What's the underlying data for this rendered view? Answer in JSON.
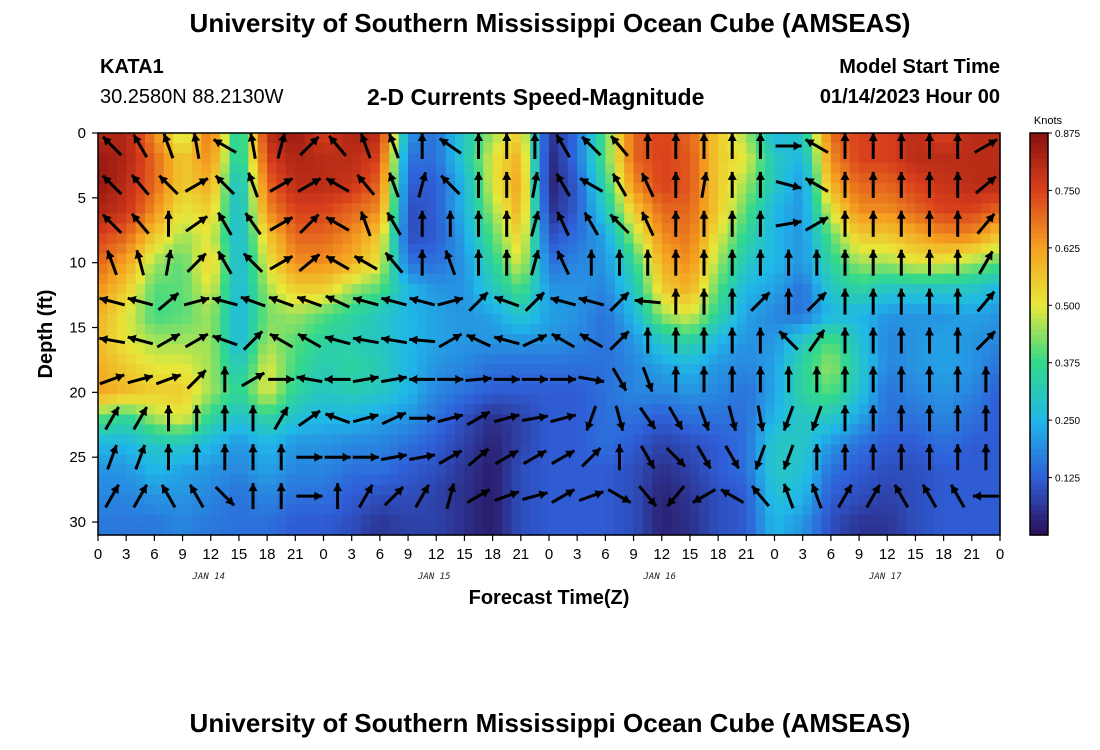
{
  "header": {
    "title": "University of Southern Mississippi Ocean Cube (AMSEAS)",
    "station": "KATA1",
    "coords": "30.2580N  88.2130W",
    "subtitle": "2-D Currents Speed-Magnitude",
    "model_start_label": "Model Start Time",
    "model_start_value": "01/14/2023 Hour 00"
  },
  "footer": {
    "title": "University of Southern Mississippi Ocean Cube (AMSEAS)"
  },
  "chart_data": {
    "type": "heatmap",
    "title": "2-D Currents Speed-Magnitude",
    "xlabel": "Forecast Time(Z)",
    "ylabel": "Depth (ft)",
    "x_tick_labels": [
      "0",
      "3",
      "6",
      "9",
      "12",
      "15",
      "18",
      "21",
      "0",
      "3",
      "6",
      "9",
      "12",
      "15",
      "18",
      "21",
      "0",
      "3",
      "6",
      "9",
      "12",
      "15",
      "18",
      "21",
      "0",
      "3",
      "6",
      "9",
      "12",
      "15",
      "18",
      "21",
      "0"
    ],
    "day_labels": [
      "JAN 14",
      "JAN 15",
      "JAN 16",
      "JAN 17"
    ],
    "x_range_hours": [
      0,
      96
    ],
    "y_ticks": [
      0,
      5,
      10,
      15,
      20,
      25,
      30
    ],
    "ylim": [
      0,
      31
    ],
    "y_inverted": true,
    "colorbar": {
      "unit": "Knots",
      "ticks": [
        "0.125",
        "0.250",
        "0.375",
        "0.500",
        "0.625",
        "0.750",
        "0.875"
      ],
      "range": [
        0,
        0.875
      ],
      "colors": [
        "#2a0f55",
        "#2f5fd8",
        "#20b8e8",
        "#33d98a",
        "#e8e83a",
        "#f5a020",
        "#d9401c",
        "#8a1010"
      ]
    },
    "speed_knots": {
      "hours": [
        0,
        3,
        6,
        9,
        12,
        15,
        18,
        21,
        24,
        27,
        30,
        33,
        36,
        39,
        42,
        45,
        48,
        51,
        54,
        57,
        60,
        63,
        66,
        69,
        72,
        75,
        78,
        81,
        84,
        87,
        90,
        93,
        96
      ],
      "depths_ft": [
        0,
        2,
        4,
        6,
        8,
        10,
        12,
        14,
        16,
        18,
        20,
        22,
        24,
        26,
        28,
        30,
        31
      ],
      "values": [
        [
          0.8,
          0.82,
          0.65,
          0.45,
          0.7,
          0.3,
          0.8,
          0.85,
          0.75,
          0.82,
          0.8,
          0.2,
          0.15,
          0.3,
          0.45,
          0.55,
          0.05,
          0.15,
          0.4,
          0.7,
          0.75,
          0.7,
          0.55,
          0.45,
          0.25,
          0.3,
          0.7,
          0.75,
          0.75,
          0.8,
          0.75,
          0.8,
          0.8
        ],
        [
          0.85,
          0.82,
          0.7,
          0.55,
          0.65,
          0.3,
          0.75,
          0.82,
          0.8,
          0.8,
          0.75,
          0.15,
          0.15,
          0.3,
          0.5,
          0.6,
          0.03,
          0.15,
          0.4,
          0.7,
          0.75,
          0.72,
          0.55,
          0.5,
          0.3,
          0.25,
          0.65,
          0.75,
          0.75,
          0.8,
          0.8,
          0.8,
          0.8
        ],
        [
          0.86,
          0.8,
          0.7,
          0.55,
          0.6,
          0.25,
          0.7,
          0.8,
          0.8,
          0.78,
          0.7,
          0.12,
          0.12,
          0.25,
          0.5,
          0.62,
          0.02,
          0.12,
          0.35,
          0.65,
          0.75,
          0.72,
          0.55,
          0.45,
          0.3,
          0.2,
          0.6,
          0.7,
          0.7,
          0.75,
          0.78,
          0.8,
          0.8
        ],
        [
          0.82,
          0.78,
          0.65,
          0.5,
          0.55,
          0.25,
          0.65,
          0.75,
          0.75,
          0.7,
          0.65,
          0.1,
          0.12,
          0.25,
          0.45,
          0.6,
          0.05,
          0.12,
          0.3,
          0.55,
          0.7,
          0.7,
          0.55,
          0.4,
          0.25,
          0.2,
          0.5,
          0.65,
          0.65,
          0.7,
          0.75,
          0.75,
          0.7
        ],
        [
          0.75,
          0.7,
          0.55,
          0.45,
          0.5,
          0.25,
          0.55,
          0.7,
          0.7,
          0.65,
          0.55,
          0.1,
          0.12,
          0.22,
          0.4,
          0.55,
          0.1,
          0.15,
          0.22,
          0.45,
          0.65,
          0.68,
          0.5,
          0.35,
          0.25,
          0.2,
          0.4,
          0.55,
          0.55,
          0.6,
          0.65,
          0.65,
          0.55
        ],
        [
          0.7,
          0.62,
          0.45,
          0.4,
          0.55,
          0.25,
          0.5,
          0.65,
          0.65,
          0.6,
          0.5,
          0.15,
          0.15,
          0.2,
          0.35,
          0.5,
          0.15,
          0.18,
          0.2,
          0.35,
          0.6,
          0.65,
          0.45,
          0.3,
          0.25,
          0.2,
          0.35,
          0.45,
          0.45,
          0.5,
          0.5,
          0.45,
          0.4
        ],
        [
          0.65,
          0.55,
          0.4,
          0.4,
          0.5,
          0.25,
          0.45,
          0.55,
          0.55,
          0.45,
          0.4,
          0.25,
          0.2,
          0.2,
          0.3,
          0.4,
          0.2,
          0.2,
          0.18,
          0.3,
          0.55,
          0.6,
          0.4,
          0.25,
          0.22,
          0.15,
          0.3,
          0.35,
          0.3,
          0.3,
          0.3,
          0.3,
          0.25
        ],
        [
          0.6,
          0.5,
          0.38,
          0.4,
          0.45,
          0.25,
          0.42,
          0.45,
          0.4,
          0.35,
          0.3,
          0.25,
          0.22,
          0.2,
          0.22,
          0.3,
          0.22,
          0.2,
          0.15,
          0.25,
          0.45,
          0.5,
          0.35,
          0.22,
          0.18,
          0.15,
          0.25,
          0.25,
          0.2,
          0.2,
          0.2,
          0.22,
          0.2
        ],
        [
          0.58,
          0.5,
          0.45,
          0.45,
          0.45,
          0.25,
          0.45,
          0.4,
          0.35,
          0.32,
          0.3,
          0.25,
          0.22,
          0.2,
          0.2,
          0.2,
          0.2,
          0.18,
          0.15,
          0.2,
          0.3,
          0.35,
          0.25,
          0.2,
          0.2,
          0.3,
          0.4,
          0.28,
          0.18,
          0.2,
          0.22,
          0.2,
          0.18
        ],
        [
          0.6,
          0.55,
          0.5,
          0.5,
          0.45,
          0.3,
          0.5,
          0.38,
          0.32,
          0.35,
          0.32,
          0.25,
          0.2,
          0.18,
          0.15,
          0.15,
          0.15,
          0.15,
          0.15,
          0.18,
          0.22,
          0.25,
          0.2,
          0.18,
          0.22,
          0.35,
          0.45,
          0.3,
          0.18,
          0.2,
          0.22,
          0.2,
          0.15
        ],
        [
          0.62,
          0.58,
          0.55,
          0.55,
          0.45,
          0.35,
          0.5,
          0.35,
          0.3,
          0.32,
          0.3,
          0.25,
          0.18,
          0.15,
          0.12,
          0.12,
          0.12,
          0.12,
          0.15,
          0.18,
          0.18,
          0.2,
          0.18,
          0.15,
          0.22,
          0.35,
          0.4,
          0.28,
          0.15,
          0.18,
          0.2,
          0.18,
          0.12
        ],
        [
          0.4,
          0.35,
          0.45,
          0.5,
          0.35,
          0.28,
          0.35,
          0.28,
          0.25,
          0.25,
          0.22,
          0.2,
          0.15,
          0.1,
          0.05,
          0.08,
          0.12,
          0.12,
          0.15,
          0.15,
          0.12,
          0.15,
          0.15,
          0.15,
          0.25,
          0.3,
          0.3,
          0.22,
          0.15,
          0.15,
          0.18,
          0.15,
          0.12
        ],
        [
          0.25,
          0.25,
          0.3,
          0.3,
          0.25,
          0.2,
          0.25,
          0.2,
          0.2,
          0.18,
          0.18,
          0.15,
          0.12,
          0.08,
          0.03,
          0.08,
          0.12,
          0.12,
          0.15,
          0.12,
          0.08,
          0.1,
          0.12,
          0.15,
          0.3,
          0.3,
          0.2,
          0.15,
          0.12,
          0.12,
          0.15,
          0.12,
          0.12
        ],
        [
          0.2,
          0.2,
          0.25,
          0.22,
          0.2,
          0.18,
          0.22,
          0.18,
          0.18,
          0.15,
          0.15,
          0.12,
          0.1,
          0.06,
          0.02,
          0.1,
          0.12,
          0.12,
          0.12,
          0.1,
          0.05,
          0.08,
          0.12,
          0.15,
          0.3,
          0.28,
          0.15,
          0.12,
          0.1,
          0.1,
          0.12,
          0.12,
          0.12
        ],
        [
          0.18,
          0.18,
          0.2,
          0.2,
          0.18,
          0.15,
          0.18,
          0.15,
          0.15,
          0.12,
          0.1,
          0.1,
          0.08,
          0.05,
          0.02,
          0.1,
          0.12,
          0.12,
          0.12,
          0.1,
          0.03,
          0.06,
          0.1,
          0.12,
          0.28,
          0.25,
          0.12,
          0.1,
          0.08,
          0.1,
          0.12,
          0.12,
          0.12
        ],
        [
          0.16,
          0.16,
          0.16,
          0.18,
          0.16,
          0.15,
          0.15,
          0.12,
          0.12,
          0.1,
          0.06,
          0.08,
          0.08,
          0.05,
          0.02,
          0.1,
          0.12,
          0.12,
          0.12,
          0.1,
          0.03,
          0.05,
          0.1,
          0.12,
          0.25,
          0.2,
          0.1,
          0.06,
          0.06,
          0.1,
          0.12,
          0.12,
          0.12
        ],
        [
          0.16,
          0.16,
          0.16,
          0.18,
          0.16,
          0.15,
          0.15,
          0.12,
          0.12,
          0.1,
          0.06,
          0.08,
          0.08,
          0.05,
          0.02,
          0.1,
          0.12,
          0.12,
          0.12,
          0.1,
          0.03,
          0.05,
          0.1,
          0.12,
          0.25,
          0.2,
          0.1,
          0.06,
          0.06,
          0.1,
          0.12,
          0.12,
          0.12
        ]
      ]
    },
    "current_vectors": {
      "hours": [
        0,
        3,
        6,
        9,
        12,
        15,
        18,
        21,
        24,
        27,
        30,
        33,
        36,
        39,
        42,
        45,
        48,
        51,
        54,
        57,
        60,
        63,
        66,
        69,
        72,
        75,
        78,
        81,
        84,
        87,
        90,
        93
      ],
      "depths_ft": [
        1,
        4,
        7,
        10,
        13,
        16,
        19,
        22,
        25,
        28
      ],
      "directions_deg": [
        [
          315,
          330,
          340,
          350,
          300,
          350,
          15,
          45,
          320,
          340,
          340,
          0,
          305,
          0,
          0,
          0,
          330,
          315,
          320,
          0,
          0,
          0,
          0,
          0,
          90,
          300,
          0,
          0,
          0,
          0,
          0,
          60
        ],
        [
          315,
          320,
          315,
          60,
          315,
          340,
          60,
          60,
          300,
          320,
          340,
          15,
          315,
          0,
          0,
          10,
          330,
          300,
          330,
          335,
          0,
          10,
          0,
          0,
          105,
          300,
          0,
          0,
          0,
          0,
          0,
          50
        ],
        [
          315,
          320,
          0,
          55,
          330,
          325,
          60,
          45,
          300,
          340,
          330,
          0,
          0,
          0,
          0,
          15,
          335,
          330,
          315,
          335,
          0,
          0,
          0,
          0,
          80,
          60,
          0,
          0,
          0,
          0,
          0,
          40
        ],
        [
          340,
          345,
          10,
          45,
          330,
          315,
          60,
          50,
          300,
          300,
          320,
          0,
          340,
          0,
          0,
          15,
          335,
          0,
          0,
          0,
          0,
          0,
          0,
          0,
          0,
          0,
          0,
          0,
          0,
          0,
          0,
          30
        ],
        [
          285,
          285,
          50,
          75,
          285,
          290,
          290,
          290,
          295,
          285,
          285,
          285,
          75,
          45,
          290,
          45,
          285,
          285,
          45,
          275,
          0,
          0,
          0,
          45,
          0,
          45,
          0,
          0,
          0,
          0,
          0,
          40
        ],
        [
          280,
          285,
          60,
          60,
          290,
          45,
          300,
          300,
          285,
          280,
          280,
          275,
          60,
          295,
          285,
          65,
          300,
          300,
          45,
          0,
          0,
          0,
          0,
          0,
          315,
          35,
          0,
          0,
          0,
          0,
          0,
          45
        ],
        [
          70,
          75,
          70,
          45,
          0,
          60,
          90,
          280,
          270,
          80,
          80,
          270,
          90,
          85,
          90,
          90,
          90,
          100,
          150,
          160,
          0,
          0,
          0,
          0,
          0,
          0,
          0,
          0,
          0,
          0,
          0,
          0
        ],
        [
          30,
          30,
          0,
          0,
          0,
          0,
          30,
          55,
          290,
          75,
          65,
          90,
          75,
          60,
          75,
          80,
          75,
          200,
          165,
          145,
          150,
          160,
          165,
          170,
          200,
          200,
          0,
          0,
          0,
          0,
          0,
          0
        ],
        [
          20,
          20,
          0,
          0,
          0,
          0,
          0,
          90,
          90,
          90,
          80,
          80,
          60,
          50,
          60,
          60,
          60,
          45,
          0,
          150,
          135,
          150,
          150,
          200,
          200,
          0,
          0,
          0,
          0,
          0,
          0,
          0
        ],
        [
          30,
          30,
          330,
          330,
          135,
          0,
          0,
          90,
          0,
          30,
          45,
          30,
          15,
          60,
          70,
          75,
          60,
          70,
          120,
          140,
          220,
          240,
          300,
          320,
          340,
          340,
          30,
          30,
          330,
          330,
          330,
          270
        ]
      ]
    }
  }
}
